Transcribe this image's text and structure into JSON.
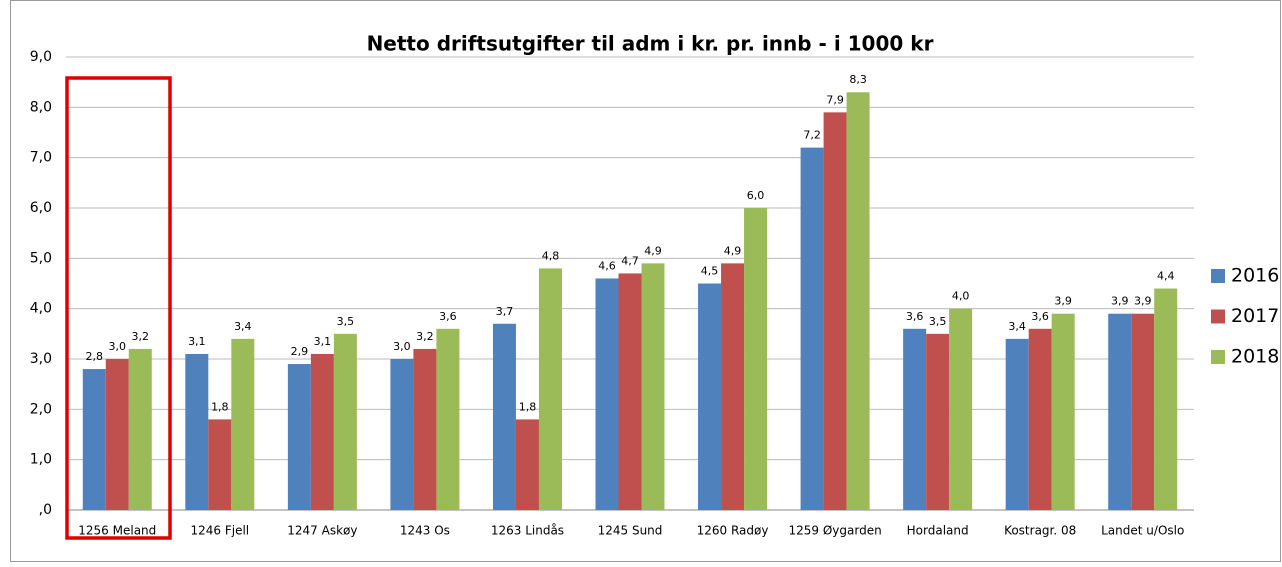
{
  "chart_data": {
    "type": "bar",
    "title": "Netto driftsutgifter til adm i kr. pr. innb - i 1000 kr",
    "categories": [
      "1256 Meland",
      "1246 Fjell",
      "1247 Askøy",
      "1243 Os",
      "1263 Lindås",
      "1245 Sund",
      "1260 Radøy",
      "1259 Øygarden",
      "Hordaland",
      "Kostragr. 08",
      "Landet u/Oslo"
    ],
    "series": [
      {
        "name": "2016",
        "color": "#4f81bd",
        "values": [
          2.8,
          3.1,
          2.9,
          3.0,
          3.7,
          4.6,
          4.5,
          7.2,
          3.6,
          3.4,
          3.9
        ],
        "value_labels": [
          "2,8",
          "3,1",
          "2,9",
          "3,0",
          "3,7",
          "4,6",
          "4,5",
          "7,2",
          "3,6",
          "3,4",
          "3,9"
        ]
      },
      {
        "name": "2017",
        "color": "#c0504d",
        "values": [
          3.0,
          1.8,
          3.1,
          3.2,
          1.8,
          4.7,
          4.9,
          7.9,
          3.5,
          3.6,
          3.9
        ],
        "value_labels": [
          "3,0",
          "1,8",
          "3,1",
          "3,2",
          "1,8",
          "4,7",
          "4,9",
          "7,9",
          "3,5",
          "3,6",
          "3,9"
        ]
      },
      {
        "name": "2018",
        "color": "#9bbb59",
        "values": [
          3.2,
          3.4,
          3.5,
          3.6,
          4.8,
          4.9,
          6.0,
          8.3,
          4.0,
          3.9,
          4.4
        ],
        "value_labels": [
          "3,2",
          "3,4",
          "3,5",
          "3,6",
          "4,8",
          "4,9",
          "6,0",
          "8,3",
          "4,0",
          "3,9",
          "4,4"
        ]
      }
    ],
    "ylim": [
      0,
      9
    ],
    "yticks": [
      {
        "value": 0,
        "label": ",0"
      },
      {
        "value": 1,
        "label": "1,0"
      },
      {
        "value": 2,
        "label": "2,0"
      },
      {
        "value": 3,
        "label": "3,0"
      },
      {
        "value": 4,
        "label": "4,0"
      },
      {
        "value": 5,
        "label": "5,0"
      },
      {
        "value": 6,
        "label": "6,0"
      },
      {
        "value": 7,
        "label": "7,0"
      },
      {
        "value": 8,
        "label": "8,0"
      },
      {
        "value": 9,
        "label": "9,0"
      }
    ],
    "grid": true,
    "legend": "right"
  }
}
